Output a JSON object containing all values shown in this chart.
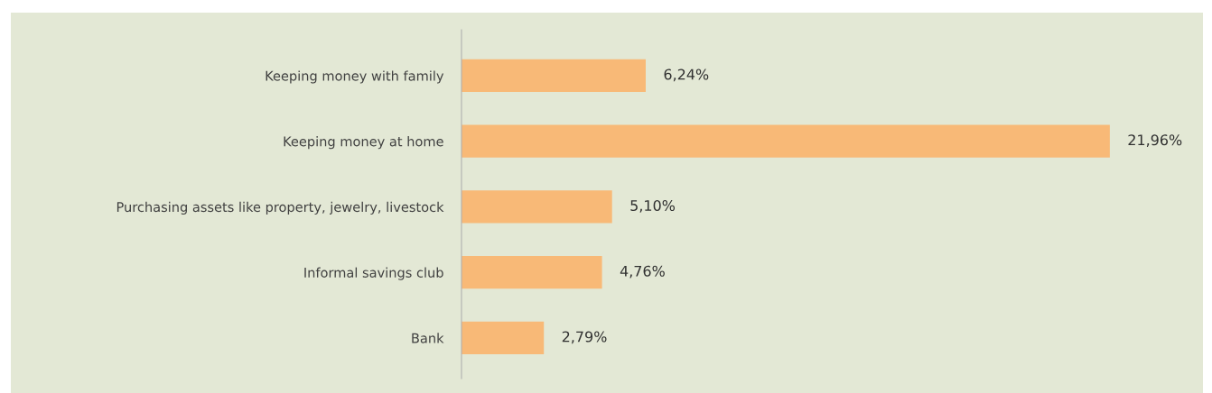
{
  "chart_data": {
    "type": "bar",
    "orientation": "horizontal",
    "categories": [
      "Keeping money with family",
      "Keeping money at home",
      "Purchasing assets like property, jewelry, livestock",
      "Informal savings club",
      "Bank"
    ],
    "values": [
      6.24,
      21.96,
      5.1,
      4.76,
      2.79
    ],
    "value_labels": [
      "6,24%",
      "21,96%",
      "5,10%",
      "4,76%",
      "2,79%"
    ],
    "color": "#f8b977",
    "grid": false,
    "legend": false
  }
}
